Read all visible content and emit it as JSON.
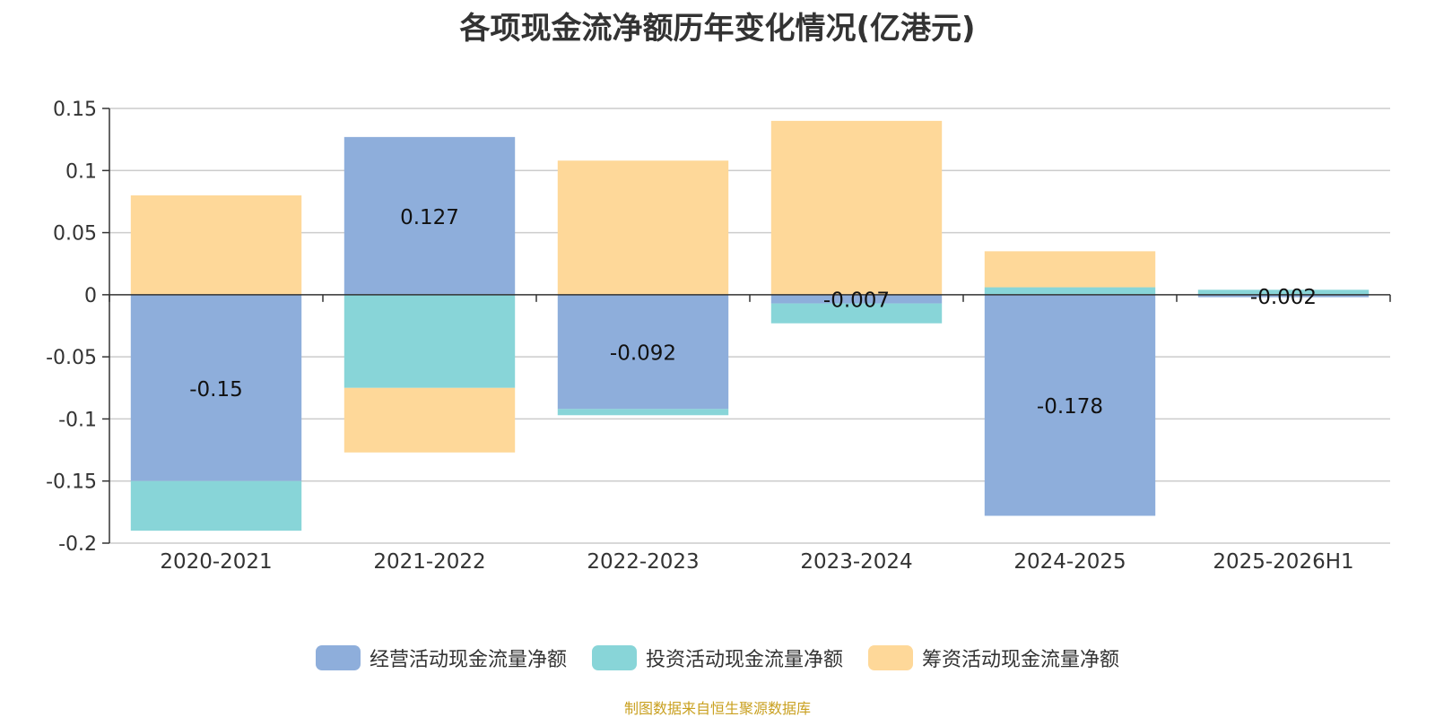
{
  "title": "各项现金流净额历年变化情况(亿港元)",
  "source": "制图数据来自恒生聚源数据库",
  "chart_data": {
    "type": "bar",
    "stacked": true,
    "title": "各项现金流净额历年变化情况(亿港元)",
    "categories": [
      "2020-2021",
      "2021-2022",
      "2022-2023",
      "2023-2024",
      "2024-2025",
      "2025-2026H1"
    ],
    "ylim": [
      -0.2,
      0.15
    ],
    "yticks": [
      0.15,
      0.1,
      0.05,
      0,
      -0.05,
      -0.1,
      -0.15,
      -0.2
    ],
    "ytick_labels": [
      "0.15",
      "0.1",
      "0.05",
      "0",
      "-0.05",
      "-0.1",
      "-0.15",
      "-0.2"
    ],
    "grid": true,
    "legend_position": "bottom",
    "series": [
      {
        "name": "经营活动现金流量净额",
        "color": "#8eaedb",
        "values": [
          -0.15,
          0.127,
          -0.092,
          -0.007,
          -0.178,
          -0.002
        ]
      },
      {
        "name": "投资活动现金流量净额",
        "color": "#88d5d8",
        "values": [
          -0.04,
          -0.075,
          -0.005,
          -0.016,
          0.006,
          0.004
        ]
      },
      {
        "name": "筹资活动现金流量净额",
        "color": "#fed899",
        "values": [
          0.08,
          -0.052,
          0.108,
          0.14,
          0.029,
          0
        ]
      }
    ],
    "data_labels": [
      "-0.15",
      "0.127",
      "-0.092",
      "-0.007",
      "-0.178",
      "-0.002"
    ]
  }
}
